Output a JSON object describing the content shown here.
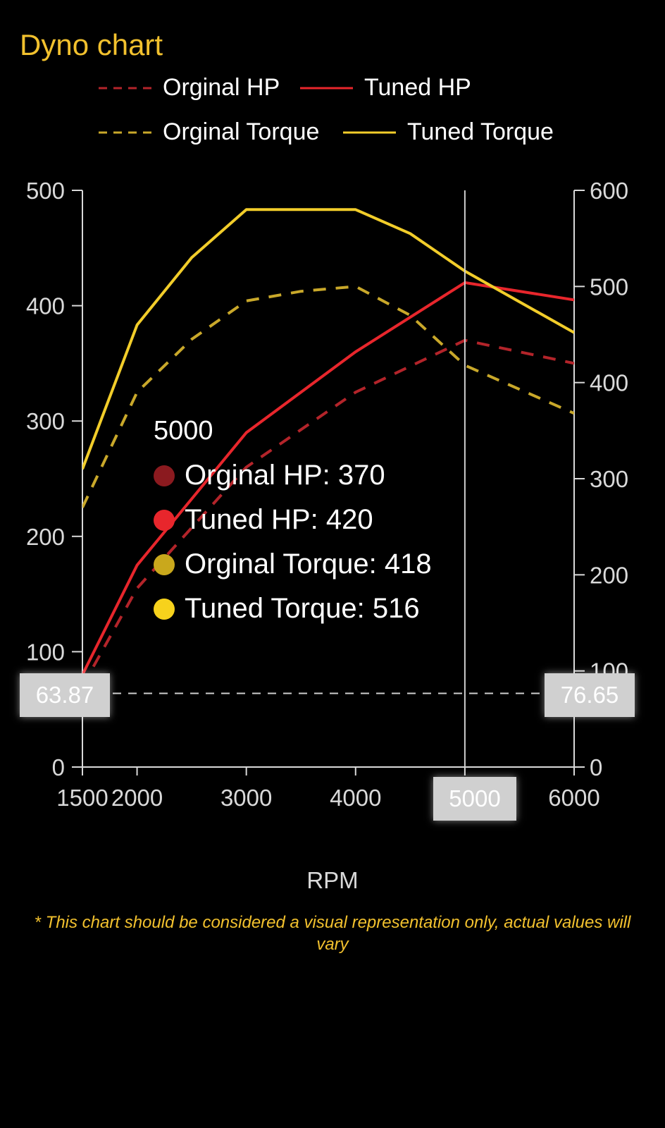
{
  "header": {
    "title": "Dyno chart"
  },
  "legend": [
    {
      "label": "Orginal HP",
      "color": "#b3242a",
      "style": "dashed"
    },
    {
      "label": "Tuned HP",
      "color": "#e8262c",
      "style": "solid"
    },
    {
      "label": "Orginal Torque",
      "color": "#c9a82a",
      "style": "dashed"
    },
    {
      "label": "Tuned Torque",
      "color": "#f2cd2a",
      "style": "solid"
    }
  ],
  "tooltip": {
    "header": "5000",
    "rows": [
      {
        "text": "Orginal HP: 370",
        "color": "#8b1a1f"
      },
      {
        "text": "Tuned HP: 420",
        "color": "#e8262c"
      },
      {
        "text": "Orginal Torque: 418",
        "color": "#c9a81c"
      },
      {
        "text": "Tuned Torque: 516",
        "color": "#f7d21c"
      }
    ]
  },
  "crosshair": {
    "left_value": "63.87",
    "right_value": "76.65",
    "x_value": "5000"
  },
  "footer": {
    "xlabel": "RPM",
    "disclaimer": "* This chart should be considered a visual representation only, actual values will vary"
  },
  "chart_data": {
    "type": "line",
    "title": "Dyno chart",
    "xlabel": "RPM",
    "ylabel": "",
    "x": [
      1500,
      2000,
      3000,
      4000,
      5000,
      6000
    ],
    "x_ticks": [
      "1500",
      "2000",
      "3000",
      "4000",
      "5000",
      "6000"
    ],
    "xlim": [
      1500,
      6000
    ],
    "y_left": {
      "lim": [
        0,
        500
      ],
      "ticks": [
        "0",
        "100",
        "200",
        "300",
        "400",
        "500"
      ]
    },
    "y_right": {
      "lim": [
        0,
        600
      ],
      "ticks": [
        "0",
        "100",
        "200",
        "300",
        "400",
        "500",
        "600"
      ]
    },
    "grid": false,
    "legend_position": "top",
    "series": [
      {
        "name": "Orginal HP",
        "axis": "left",
        "style": "dashed",
        "color": "#b3242a",
        "x": [
          1500,
          2000,
          3000,
          4000,
          5000,
          6000
        ],
        "values": [
          70,
          155,
          260,
          325,
          370,
          350
        ]
      },
      {
        "name": "Tuned HP",
        "axis": "left",
        "style": "solid",
        "color": "#e8262c",
        "x": [
          1500,
          2000,
          3000,
          4000,
          5000,
          6000
        ],
        "values": [
          80,
          175,
          290,
          360,
          420,
          405
        ]
      },
      {
        "name": "Orginal Torque",
        "axis": "right",
        "style": "dashed",
        "color": "#c9a82a",
        "x": [
          1500,
          2000,
          2500,
          3000,
          3500,
          4000,
          4500,
          5000,
          6000
        ],
        "values": [
          270,
          390,
          445,
          485,
          495,
          500,
          470,
          418,
          368
        ]
      },
      {
        "name": "Tuned Torque",
        "axis": "right",
        "style": "solid",
        "color": "#f2cd2a",
        "x": [
          1500,
          2000,
          2500,
          3000,
          3500,
          4000,
          4500,
          5000,
          6000
        ],
        "values": [
          310,
          460,
          530,
          580,
          580,
          580,
          555,
          516,
          452
        ]
      }
    ]
  }
}
